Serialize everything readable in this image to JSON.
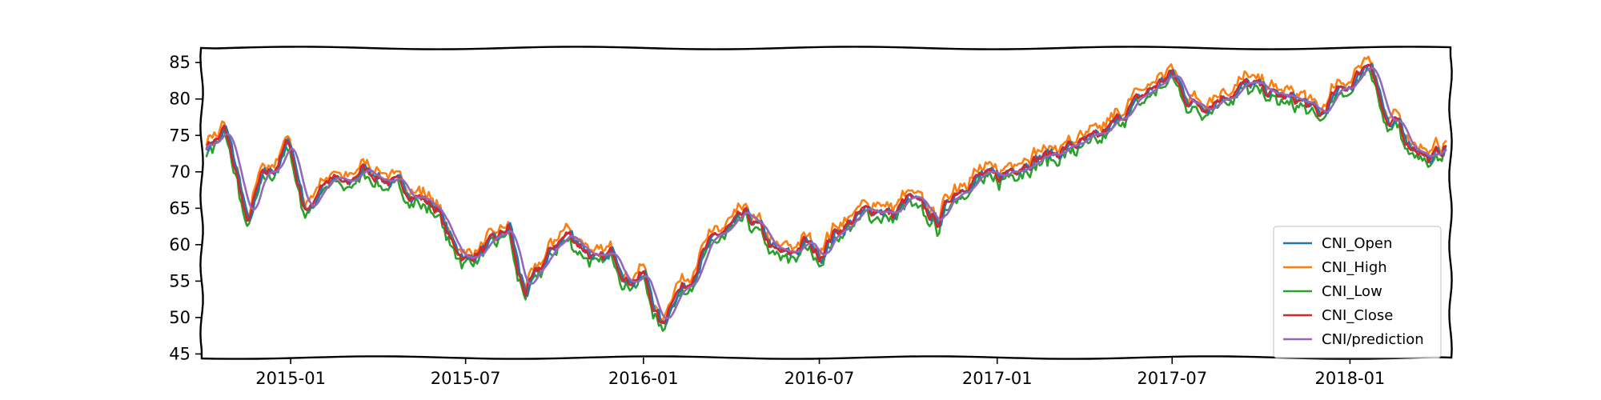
{
  "chart_data": {
    "type": "line",
    "x_range": [
      "2014-10-01",
      "2018-04-15"
    ],
    "ylim": [
      44.5,
      87
    ],
    "y_ticks": [
      45,
      50,
      55,
      60,
      65,
      70,
      75,
      80,
      85
    ],
    "x_ticks": [
      "2015-01",
      "2015-07",
      "2016-01",
      "2016-07",
      "2017-01",
      "2017-07",
      "2018-01"
    ],
    "legend_position": "lower-right",
    "grid": false,
    "series": [
      {
        "name": "CNI_Open",
        "color": "#1f77b4"
      },
      {
        "name": "CNI_High",
        "color": "#ff7f0e"
      },
      {
        "name": "CNI_Low",
        "color": "#2ca02c"
      },
      {
        "name": "CNI_Close",
        "color": "#d62728"
      },
      {
        "name": "CNI/prediction",
        "color": "#9467bd"
      }
    ],
    "close_trend": [
      [
        "2014-10-06",
        73.8
      ],
      [
        "2014-10-20",
        74.8
      ],
      [
        "2014-10-24",
        76.0
      ],
      [
        "2014-11-03",
        71.0
      ],
      [
        "2014-11-10",
        67.5
      ],
      [
        "2014-11-17",
        62.5
      ],
      [
        "2014-11-24",
        66.0
      ],
      [
        "2014-12-01",
        69.0
      ],
      [
        "2014-12-15",
        70.5
      ],
      [
        "2014-12-22",
        72.0
      ],
      [
        "2014-12-30",
        74.5
      ],
      [
        "2015-01-06",
        70.0
      ],
      [
        "2015-01-13",
        66.0
      ],
      [
        "2015-01-20",
        64.5
      ],
      [
        "2015-02-01",
        68.5
      ],
      [
        "2015-02-15",
        69.0
      ],
      [
        "2015-03-01",
        68.0
      ],
      [
        "2015-03-15",
        70.5
      ],
      [
        "2015-04-01",
        69.5
      ],
      [
        "2015-04-15",
        68.5
      ],
      [
        "2015-05-01",
        67.5
      ],
      [
        "2015-05-15",
        66.5
      ],
      [
        "2015-06-01",
        65.0
      ],
      [
        "2015-06-15",
        60.5
      ],
      [
        "2015-07-01",
        58.0
      ],
      [
        "2015-07-15",
        59.0
      ],
      [
        "2015-08-01",
        60.5
      ],
      [
        "2015-08-15",
        62.5
      ],
      [
        "2015-08-24",
        56.0
      ],
      [
        "2015-09-01",
        53.5
      ],
      [
        "2015-09-15",
        56.5
      ],
      [
        "2015-10-01",
        60.0
      ],
      [
        "2015-10-15",
        61.5
      ],
      [
        "2015-11-01",
        59.5
      ],
      [
        "2015-11-15",
        57.5
      ],
      [
        "2015-12-01",
        59.0
      ],
      [
        "2015-12-15",
        55.0
      ],
      [
        "2016-01-01",
        56.0
      ],
      [
        "2016-01-10",
        52.0
      ],
      [
        "2016-01-20",
        48.5
      ],
      [
        "2016-02-01",
        53.5
      ],
      [
        "2016-02-15",
        54.5
      ],
      [
        "2016-03-01",
        58.5
      ],
      [
        "2016-03-15",
        61.0
      ],
      [
        "2016-04-01",
        62.5
      ],
      [
        "2016-04-15",
        64.0
      ],
      [
        "2016-05-01",
        62.0
      ],
      [
        "2016-05-15",
        59.0
      ],
      [
        "2016-06-01",
        58.5
      ],
      [
        "2016-06-15",
        60.5
      ],
      [
        "2016-07-01",
        58.5
      ],
      [
        "2016-07-15",
        61.5
      ],
      [
        "2016-08-01",
        63.0
      ],
      [
        "2016-08-15",
        64.5
      ],
      [
        "2016-09-01",
        65.0
      ],
      [
        "2016-09-15",
        64.0
      ],
      [
        "2016-10-01",
        66.5
      ],
      [
        "2016-10-15",
        65.0
      ],
      [
        "2016-11-01",
        63.0
      ],
      [
        "2016-11-15",
        67.0
      ],
      [
        "2016-12-01",
        68.5
      ],
      [
        "2016-12-15",
        69.5
      ],
      [
        "2017-01-01",
        69.0
      ],
      [
        "2017-01-15",
        70.5
      ],
      [
        "2017-02-01",
        71.5
      ],
      [
        "2017-02-15",
        72.0
      ],
      [
        "2017-03-01",
        72.5
      ],
      [
        "2017-03-15",
        73.5
      ],
      [
        "2017-04-01",
        74.0
      ],
      [
        "2017-04-15",
        74.5
      ],
      [
        "2017-05-01",
        76.5
      ],
      [
        "2017-05-15",
        78.5
      ],
      [
        "2017-06-01",
        80.5
      ],
      [
        "2017-06-15",
        82.0
      ],
      [
        "2017-07-01",
        83.5
      ],
      [
        "2017-07-15",
        80.0
      ],
      [
        "2017-08-01",
        79.0
      ],
      [
        "2017-08-15",
        80.0
      ],
      [
        "2017-09-01",
        81.0
      ],
      [
        "2017-09-15",
        82.0
      ],
      [
        "2017-10-01",
        81.5
      ],
      [
        "2017-10-15",
        80.5
      ],
      [
        "2017-11-01",
        80.0
      ],
      [
        "2017-11-15",
        79.5
      ],
      [
        "2017-12-01",
        77.5
      ],
      [
        "2017-12-15",
        80.5
      ],
      [
        "2018-01-01",
        82.0
      ],
      [
        "2018-01-15",
        84.5
      ],
      [
        "2018-01-22",
        85.5
      ],
      [
        "2018-02-01",
        80.0
      ],
      [
        "2018-02-09",
        75.5
      ],
      [
        "2018-02-20",
        77.0
      ],
      [
        "2018-03-01",
        74.0
      ],
      [
        "2018-03-15",
        73.0
      ],
      [
        "2018-03-25",
        71.5
      ],
      [
        "2018-04-01",
        72.5
      ],
      [
        "2018-04-10",
        73.5
      ]
    ]
  }
}
